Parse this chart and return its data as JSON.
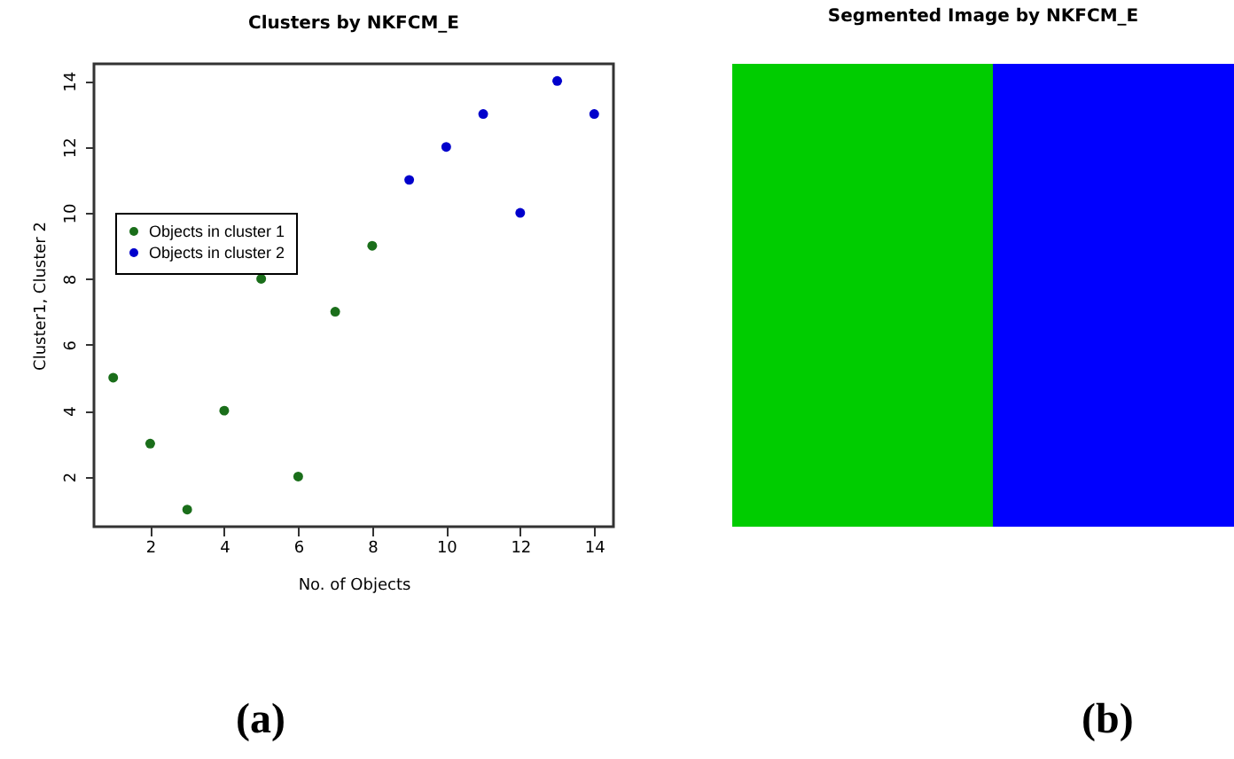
{
  "chart_data": [
    {
      "type": "scatter",
      "title": "Clusters by NKFCM_E",
      "xlabel": "No. of Objects",
      "ylabel": "Cluster1, Cluster 2",
      "xlim": [
        0.48,
        14.52
      ],
      "ylim": [
        0.48,
        14.52
      ],
      "xticks": [
        2,
        4,
        6,
        8,
        10,
        12,
        14
      ],
      "yticks": [
        2,
        4,
        6,
        8,
        10,
        12,
        14
      ],
      "marker": "circle",
      "legend": "left",
      "annotations": [
        "(a)"
      ],
      "series": [
        {
          "name": "Objects in cluster 1",
          "color": "#1a6e1a",
          "x": [
            1,
            2,
            3,
            4,
            5,
            6,
            7,
            8
          ],
          "values": [
            5,
            3,
            1,
            4,
            8,
            2,
            7,
            9
          ]
        },
        {
          "name": "Objects in cluster 2",
          "color": "#0000cc",
          "x": [
            9,
            10,
            11,
            12,
            13,
            14
          ],
          "values": [
            11,
            12,
            13,
            10,
            14,
            13
          ]
        }
      ]
    },
    {
      "type": "other",
      "title": "Segmented Image by NKFCM_E",
      "annotations": [
        "(b)"
      ]
    }
  ]
}
